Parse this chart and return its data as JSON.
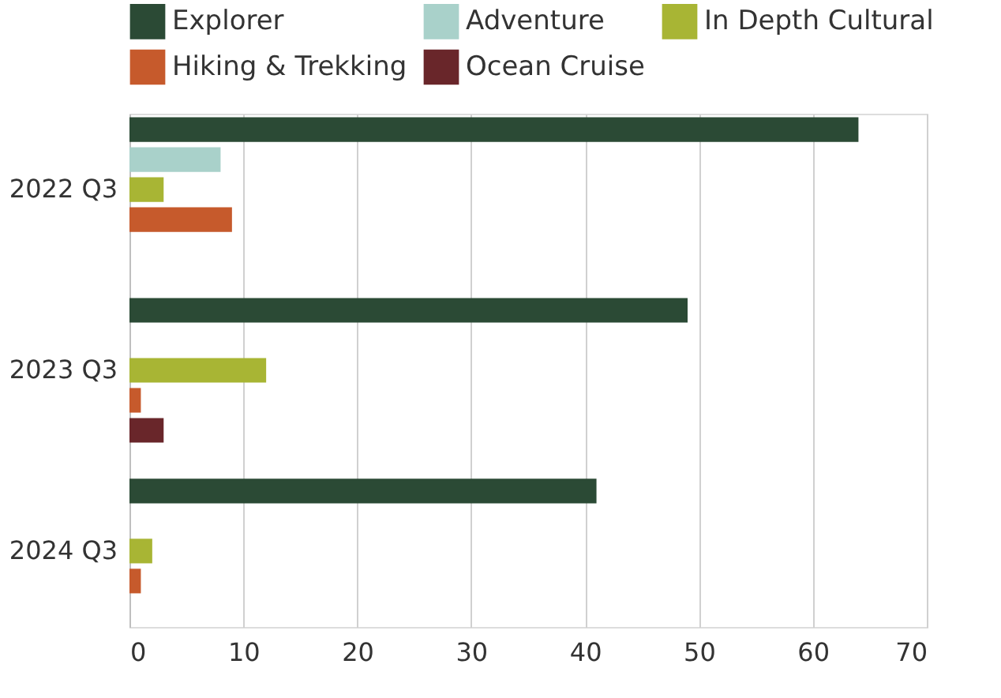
{
  "chart_data": {
    "type": "bar",
    "orientation": "horizontal",
    "categories": [
      "2022 Q3",
      "2023 Q3",
      "2024 Q3"
    ],
    "series": [
      {
        "name": "Explorer",
        "color": "#2b4a35",
        "values": [
          64,
          49,
          41
        ]
      },
      {
        "name": "Adventure",
        "color": "#a9d1ca",
        "values": [
          8,
          null,
          null
        ]
      },
      {
        "name": "In Depth Cultural",
        "color": "#a8b534",
        "values": [
          3,
          12,
          2
        ]
      },
      {
        "name": "Hiking & Trekking",
        "color": "#c65a2c",
        "values": [
          9,
          1,
          1
        ]
      },
      {
        "name": "Ocean Cruise",
        "color": "#69262a",
        "values": [
          null,
          3,
          null
        ]
      }
    ],
    "xlim": [
      0,
      70
    ],
    "xticks": [
      0,
      10,
      20,
      30,
      40,
      50,
      60,
      70
    ],
    "grid": "x",
    "legend": "top"
  }
}
